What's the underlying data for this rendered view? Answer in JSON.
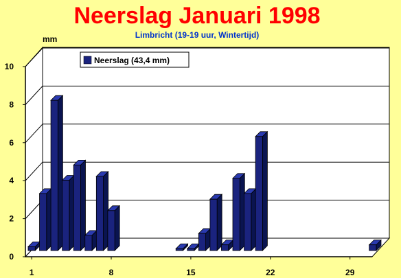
{
  "chart_data": {
    "type": "bar",
    "title": "Neerslag Januari 1998",
    "subtitle": "Limbricht (19-19 uur, Wintertijd)",
    "ylabel": "mm",
    "ylim": [
      0,
      10
    ],
    "yticks": [
      0,
      2,
      4,
      6,
      8,
      10
    ],
    "xlim": [
      1,
      31
    ],
    "xticks": [
      1,
      8,
      15,
      22,
      29
    ],
    "grid": true,
    "legend_position": "top-left",
    "style": "3d",
    "series": [
      {
        "name": "Neerslag (43,4 mm)",
        "color": "#1A237E",
        "x": [
          1,
          2,
          3,
          4,
          5,
          6,
          7,
          8,
          9,
          10,
          11,
          12,
          13,
          14,
          15,
          16,
          17,
          18,
          19,
          20,
          21,
          22,
          23,
          24,
          25,
          26,
          27,
          28,
          29,
          30,
          31
        ],
        "values": [
          0.2,
          3.0,
          7.9,
          3.7,
          4.5,
          0.8,
          3.9,
          2.1,
          0,
          0,
          0,
          0,
          0,
          0.1,
          0.1,
          0.9,
          2.7,
          0.3,
          3.8,
          3.0,
          6.0,
          0,
          0,
          0,
          0,
          0,
          0,
          0,
          0,
          0,
          0.3
        ]
      }
    ]
  }
}
